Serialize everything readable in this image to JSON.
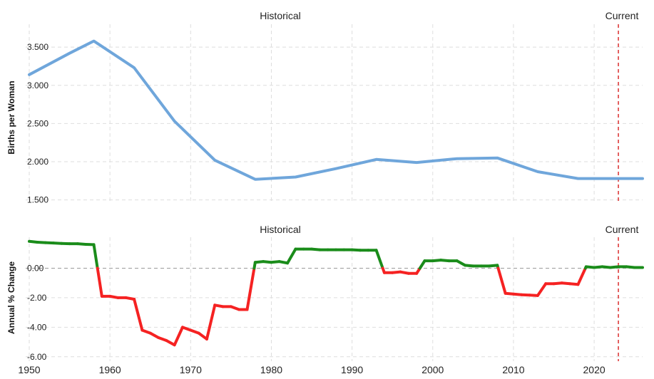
{
  "chart_data": [
    {
      "type": "line",
      "region_label": "Historical",
      "current_label": "Current",
      "ylabel": "Births per Woman",
      "ylim": [
        1.45,
        3.8
      ],
      "yticks": [
        1.5,
        2.0,
        2.5,
        3.0,
        3.5
      ],
      "ytick_labels": [
        "1.500",
        "2.000",
        "2.500",
        "3.000",
        "3.500"
      ],
      "xlim": [
        1950,
        2026
      ],
      "current_marker_x": 2023,
      "line_color": "#6fa6db",
      "grid": true,
      "series": [
        {
          "x": [
            1950,
            1955,
            1958,
            1963,
            1968,
            1973,
            1978,
            1983,
            1988,
            1993,
            1998,
            2003,
            2008,
            2013,
            2018,
            2023,
            2026
          ],
          "values": [
            3.14,
            3.42,
            3.58,
            3.23,
            2.53,
            2.02,
            1.77,
            1.8,
            1.91,
            2.03,
            1.99,
            2.04,
            2.05,
            1.87,
            1.78,
            1.78,
            1.78
          ]
        }
      ]
    },
    {
      "type": "line",
      "region_label": "Historical",
      "current_label": "Current",
      "ylabel": "Annual % Change",
      "ylim": [
        -6.3,
        2.1
      ],
      "yticks": [
        0,
        -2,
        -4,
        -6
      ],
      "ytick_labels": [
        "0.00",
        "-2.00",
        "-4.00",
        "-6.00"
      ],
      "xlim": [
        1950,
        2026
      ],
      "xticks": [
        1950,
        1960,
        1970,
        1980,
        1990,
        2000,
        2010,
        2020
      ],
      "xtick_labels": [
        "1950",
        "1960",
        "1970",
        "1980",
        "1990",
        "2000",
        "2010",
        "2020"
      ],
      "current_marker_x": 2023,
      "positive_color": "#1a8c1a",
      "negative_color": "#f52222",
      "grid": true,
      "series": [
        {
          "x": [
            1950,
            1951,
            1952,
            1953,
            1954,
            1955,
            1956,
            1957,
            1958,
            1959,
            1960,
            1961,
            1962,
            1963,
            1964,
            1965,
            1966,
            1967,
            1968,
            1969,
            1970,
            1971,
            1972,
            1973,
            1974,
            1975,
            1976,
            1977,
            1978,
            1979,
            1980,
            1981,
            1982,
            1983,
            1984,
            1985,
            1986,
            1987,
            1988,
            1989,
            1990,
            1991,
            1992,
            1993,
            1994,
            1995,
            1996,
            1997,
            1998,
            1999,
            2000,
            2001,
            2002,
            2003,
            2004,
            2005,
            2006,
            2007,
            2008,
            2009,
            2010,
            2011,
            2012,
            2013,
            2014,
            2015,
            2016,
            2017,
            2018,
            2019,
            2020,
            2021,
            2022,
            2023,
            2024,
            2025,
            2026
          ],
          "values": [
            1.82,
            1.76,
            1.73,
            1.71,
            1.68,
            1.66,
            1.66,
            1.62,
            1.6,
            -1.9,
            -1.9,
            -2.0,
            -2.0,
            -2.1,
            -4.2,
            -4.4,
            -4.7,
            -4.9,
            -5.2,
            -4.0,
            -4.2,
            -4.4,
            -4.8,
            -2.5,
            -2.6,
            -2.6,
            -2.8,
            -2.8,
            0.4,
            0.45,
            0.4,
            0.45,
            0.35,
            1.3,
            1.3,
            1.3,
            1.25,
            1.25,
            1.25,
            1.25,
            1.25,
            1.22,
            1.22,
            1.22,
            -0.3,
            -0.3,
            -0.25,
            -0.35,
            -0.35,
            0.5,
            0.5,
            0.55,
            0.5,
            0.5,
            0.2,
            0.15,
            0.15,
            0.15,
            0.2,
            -1.7,
            -1.75,
            -1.8,
            -1.82,
            -1.85,
            -1.05,
            -1.05,
            -1.0,
            -1.05,
            -1.1,
            0.1,
            0.05,
            0.1,
            0.05,
            0.1,
            0.1,
            0.05,
            0.05
          ]
        }
      ]
    }
  ]
}
